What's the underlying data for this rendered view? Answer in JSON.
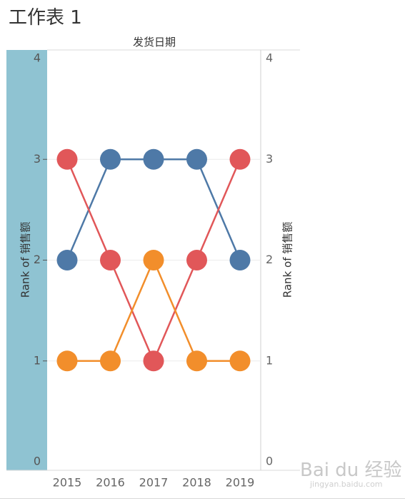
{
  "sheet_title": "工作表 1",
  "header_label": "发货日期",
  "watermark": {
    "text": "Bai du 经验",
    "sub": "jingyan.baidu.com"
  },
  "colors": {
    "left_band": "#8fc3d2",
    "grid": "#ececec",
    "axis": "#cfcfcf",
    "tick_text": "#666666"
  },
  "chart_data": {
    "type": "line",
    "title": "",
    "xlabel": "发货日期",
    "ylabel": "Rank of 销售额",
    "y2label": "Rank of 销售额",
    "x": [
      "2015",
      "2016",
      "2017",
      "2018",
      "2019"
    ],
    "ylim": [
      0,
      4
    ],
    "yticks": [
      0,
      1,
      2,
      3,
      4
    ],
    "grid": true,
    "legend": "none",
    "series": [
      {
        "color": "#4e79a7",
        "values": [
          2,
          3,
          3,
          3,
          2
        ]
      },
      {
        "color": "#e15759",
        "values": [
          3,
          2,
          1,
          2,
          3
        ]
      },
      {
        "color": "#f28e2b",
        "values": [
          1,
          1,
          2,
          1,
          1
        ]
      }
    ]
  }
}
